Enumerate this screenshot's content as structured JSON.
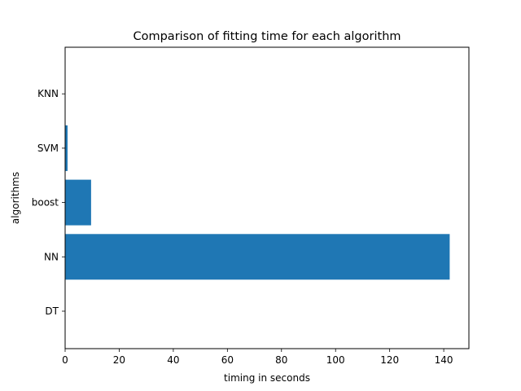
{
  "chart_data": {
    "type": "bar",
    "orientation": "horizontal",
    "title": "Comparison of fitting time for each algorithm",
    "xlabel": "timing in seconds",
    "ylabel": "algorithms",
    "categories": [
      "DT",
      "NN",
      "boost",
      "SVM",
      "KNN"
    ],
    "values": [
      0.05,
      142.2,
      9.6,
      0.9,
      0.02
    ],
    "xlim": [
      0,
      149.3
    ],
    "xticks": [
      "0",
      "20",
      "40",
      "60",
      "80",
      "100",
      "120",
      "140"
    ],
    "grid": false,
    "bar_color": "#1f77b4"
  }
}
